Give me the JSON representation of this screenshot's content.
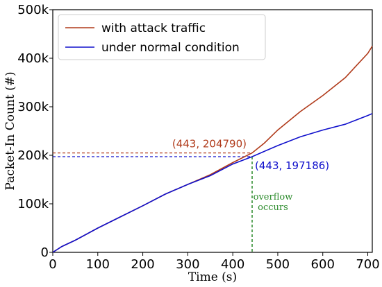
{
  "chart_data": {
    "type": "line",
    "xlabel": "Time (s)",
    "ylabel": "Packet-In Count (#)",
    "xlim": [
      0,
      710
    ],
    "ylim": [
      0,
      500000
    ],
    "xticks": [
      0,
      100,
      200,
      300,
      400,
      500,
      600,
      700
    ],
    "xtick_labels": [
      "0",
      "100",
      "200",
      "300",
      "400",
      "500",
      "600",
      "700"
    ],
    "yticks": [
      0,
      100000,
      200000,
      300000,
      400000,
      500000
    ],
    "ytick_labels": [
      "0",
      "100k",
      "200k",
      "300k",
      "400k",
      "500k"
    ],
    "grid": false,
    "legend_position": "top-left",
    "series": [
      {
        "name": "with attack traffic",
        "color": "#b03a1a",
        "x": [
          0,
          20,
          50,
          100,
          150,
          200,
          250,
          300,
          350,
          400,
          443,
          470,
          500,
          550,
          600,
          650,
          700,
          710
        ],
        "y": [
          0,
          12000,
          25000,
          50000,
          73000,
          96000,
          120000,
          140000,
          160000,
          185000,
          204790,
          225000,
          252000,
          290000,
          323000,
          360000,
          410000,
          425000
        ]
      },
      {
        "name": "under normal condition",
        "color": "#1010cc",
        "x": [
          0,
          20,
          50,
          100,
          150,
          200,
          250,
          300,
          350,
          400,
          443,
          470,
          500,
          550,
          600,
          650,
          700,
          710
        ],
        "y": [
          0,
          12000,
          25000,
          50000,
          73000,
          96000,
          120000,
          140000,
          158000,
          182000,
          197186,
          208000,
          220000,
          238000,
          252000,
          264000,
          282000,
          286000
        ]
      }
    ],
    "annotations": [
      {
        "text": "(443, 204790)",
        "x": 443,
        "y": 204790,
        "color": "#b03a1a",
        "placement": "above-left"
      },
      {
        "text": "(443, 197186)",
        "x": 443,
        "y": 197186,
        "color": "#1010cc",
        "placement": "right"
      },
      {
        "text_lines": [
          "overflow",
          "occurs"
        ],
        "x": 443,
        "color": "#2a8a2a",
        "placement": "right-of-vline"
      }
    ]
  }
}
